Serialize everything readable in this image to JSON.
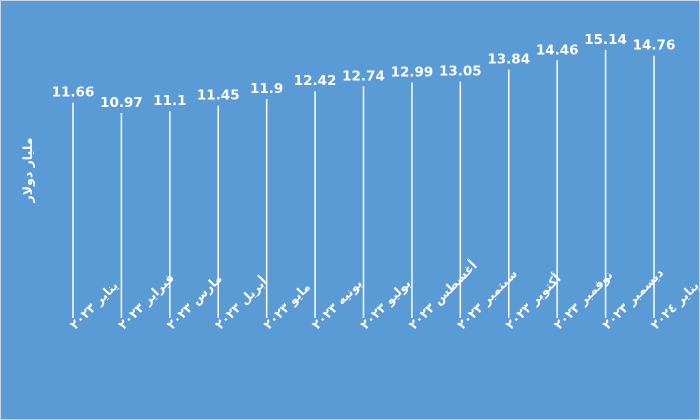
{
  "chart_data": {
    "type": "line",
    "categories": [
      "يناير ٢٠٢٣",
      "فبراير ٢٠٢٣",
      "مارس ٢٠٢٣",
      "أبريل ٢٠٢٣",
      "مايو ٢٠٢٣",
      "يونيه ٢٠٢٣",
      "يوليو ٢٠٢٣",
      "أغسطس ٢٠٢٣",
      "سبتمبر ٢٠٢٣",
      "أكتوبر ٢٠٢٣",
      "نوفمبر ٢٠٢٣",
      "ديسمبر ٢٠٢٣",
      "يناير ٢٠٢٤"
    ],
    "values": [
      11.66,
      10.97,
      11.1,
      11.45,
      11.9,
      12.42,
      12.74,
      12.99,
      13.05,
      13.84,
      14.46,
      15.14,
      14.76
    ],
    "value_labels": [
      "11.66",
      "10.97",
      "11.1",
      "11.45",
      "11.9",
      "12.42",
      "12.74",
      "12.99",
      "13.05",
      "13.84",
      "14.46",
      "15.14",
      "14.76"
    ],
    "ylabel": "مليار دولار",
    "ylim": [
      0,
      15.14
    ],
    "grid": false,
    "data_labels": true,
    "colors": {
      "background": "#5b9bd5",
      "marks": "#ffffff",
      "text": "#ffffff"
    }
  }
}
